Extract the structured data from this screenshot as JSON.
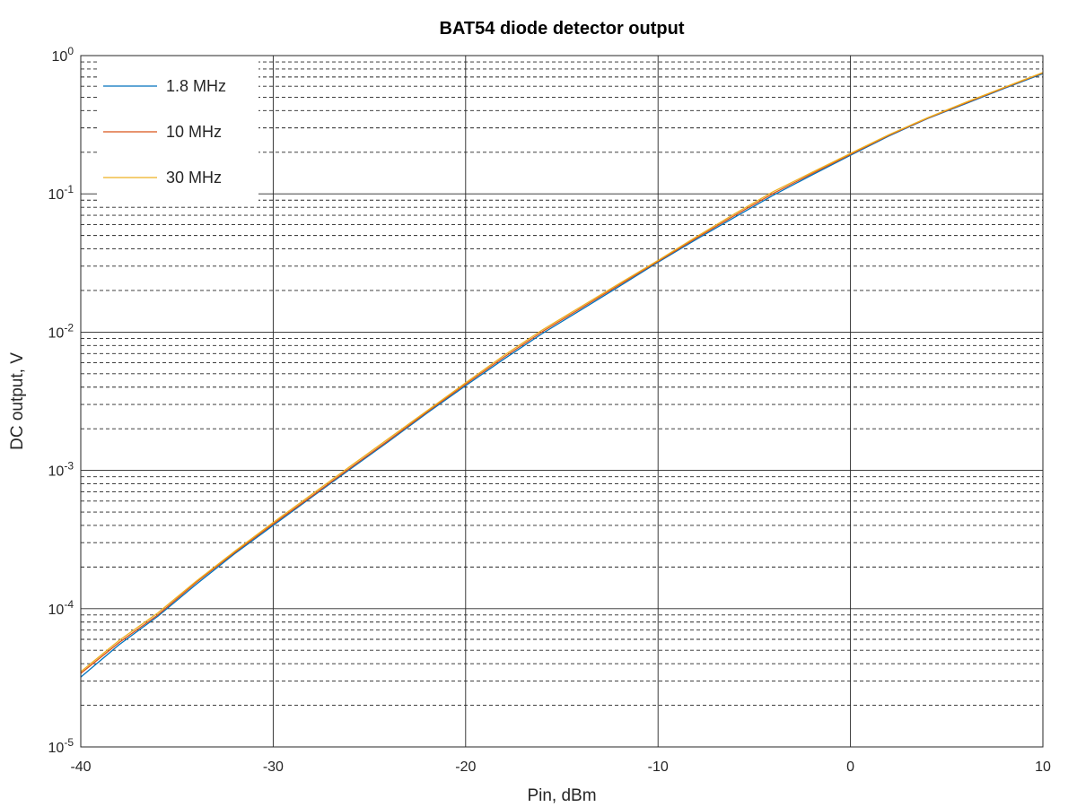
{
  "chart_data": {
    "type": "line",
    "title": "BAT54 diode detector output",
    "xlabel": "Pin, dBm",
    "ylabel": "DC output, V",
    "xlim": [
      -40,
      10
    ],
    "ylim": [
      1e-05,
      1
    ],
    "yscale": "log",
    "grid": true,
    "minor_grid": true,
    "legend_position": "top-left",
    "x_ticks": [
      -40,
      -30,
      -20,
      -10,
      0,
      10
    ],
    "x_tick_labels": [
      "-40",
      "-30",
      "-20",
      "-10",
      "0",
      "10"
    ],
    "y_ticks": [
      1e-05,
      0.0001,
      0.001,
      0.01,
      0.1,
      1
    ],
    "y_tick_labels": [
      {
        "base": "10",
        "exp": "-5"
      },
      {
        "base": "10",
        "exp": "-4"
      },
      {
        "base": "10",
        "exp": "-3"
      },
      {
        "base": "10",
        "exp": "-2"
      },
      {
        "base": "10",
        "exp": "-1"
      },
      {
        "base": "10",
        "exp": "0"
      }
    ],
    "x": [
      -40,
      -38,
      -36,
      -34,
      -32,
      -30,
      -28,
      -26,
      -24,
      -22,
      -20,
      -18,
      -16,
      -14,
      -12,
      -10,
      -8,
      -6,
      -4,
      -2,
      0,
      2,
      4,
      6,
      8,
      10
    ],
    "series": [
      {
        "name": "1.8 MHz",
        "color": "#0072BD",
        "values": [
          3.2e-05,
          5.5e-05,
          8.8e-05,
          0.00015,
          0.00025,
          0.0004,
          0.00064,
          0.00102,
          0.00162,
          0.0026,
          0.0041,
          0.0064,
          0.0098,
          0.0145,
          0.0215,
          0.032,
          0.047,
          0.068,
          0.098,
          0.137,
          0.19,
          0.262,
          0.35,
          0.45,
          0.58,
          0.74
        ]
      },
      {
        "name": "10 MHz",
        "color": "#D95319",
        "values": [
          3.4e-05,
          5.7e-05,
          9e-05,
          0.000155,
          0.000255,
          0.00041,
          0.00065,
          0.00104,
          0.00165,
          0.00265,
          0.0042,
          0.0066,
          0.0101,
          0.0149,
          0.022,
          0.0325,
          0.048,
          0.07,
          0.101,
          0.14,
          0.193,
          0.265,
          0.352,
          0.455,
          0.585,
          0.75
        ]
      },
      {
        "name": "30 MHz",
        "color": "#EDB120",
        "values": [
          3.5e-05,
          5.9e-05,
          9.3e-05,
          0.000158,
          0.00026,
          0.00042,
          0.00067,
          0.00107,
          0.0017,
          0.0027,
          0.0043,
          0.0068,
          0.0104,
          0.0153,
          0.0225,
          0.033,
          0.049,
          0.072,
          0.104,
          0.143,
          0.196,
          0.268,
          0.355,
          0.46,
          0.59,
          0.755
        ]
      }
    ]
  }
}
